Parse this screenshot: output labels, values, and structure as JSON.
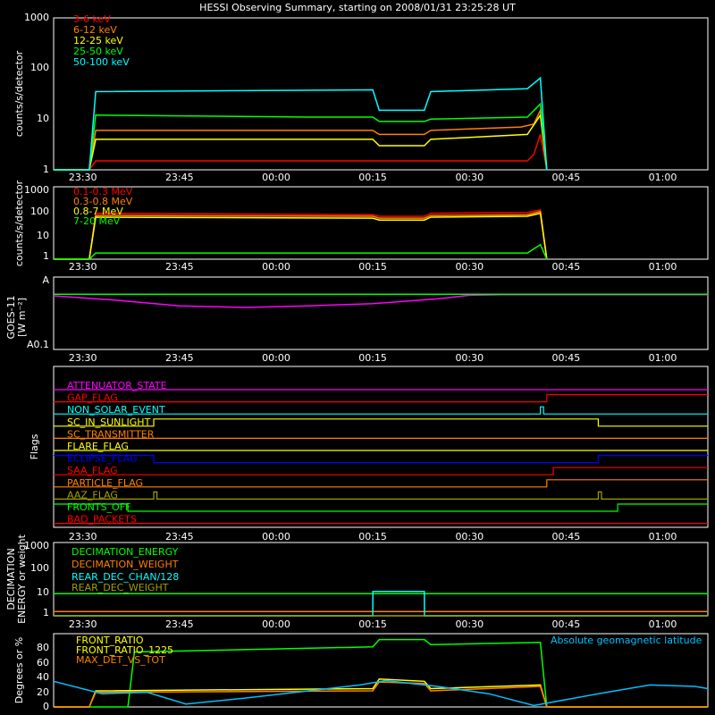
{
  "title": "HESSI Observing Summary, starting on 2008/01/31 23:25:28 UT",
  "time_axis": {
    "start": "23:25:28",
    "end": "01:07",
    "tick_labels": [
      "23:30",
      "23:45",
      "00:00",
      "00:15",
      "00:30",
      "00:45",
      "01:00"
    ]
  },
  "panels": {
    "lo_energy": {
      "ylabel": "counts/s/detector",
      "tick_labels": [
        "1",
        "10",
        "100",
        "1000"
      ]
    },
    "hi_energy": {
      "ylabel": "counts/s/detector",
      "tick_labels": [
        "1",
        "10",
        "100",
        "1000"
      ]
    },
    "goes": {
      "ylabel_line1": "GOES-11",
      "ylabel_line2": "[W m⁻²]",
      "tick_labels": [
        "A0.1",
        "A"
      ]
    },
    "flags": {
      "ylabel": "Flags"
    },
    "decimation": {
      "ylabel_line1": "DECIMATION",
      "ylabel_line2": "ENERGY or weight",
      "tick_labels": [
        "1",
        "10",
        "100",
        "1000"
      ]
    },
    "geo": {
      "ylabel": "Degrees or %",
      "tick_labels": [
        "0",
        "20",
        "40",
        "60",
        "80"
      ],
      "annotation": "Absolute geomagnetic latitude"
    }
  },
  "colors": {
    "red": "#ff0000",
    "orange": "#ff8000",
    "yellow": "#ffff00",
    "green": "#00ff00",
    "cyan": "#00ffff",
    "magenta": "#ff00ff",
    "blue": "#0000ff",
    "brown": "#c06000",
    "olive": "#a0a000",
    "axis": "#ffffff",
    "background": "#000000"
  },
  "chart_data": [
    {
      "type": "line",
      "title": "HESSI Observing Summary, starting on 2008/01/31 23:25:28 UT",
      "ylabel": "counts/s/detector",
      "yscale": "log",
      "ylim": [
        1,
        1000
      ],
      "xlim": [
        "23:25:28",
        "01:07"
      ],
      "series": [
        {
          "name": "3-6 keV",
          "color": "#ff0000",
          "points": [
            [
              "23:25:28",
              1
            ],
            [
              "23:31",
              1
            ],
            [
              "23:32",
              1.5
            ],
            [
              "00:05",
              1.5
            ],
            [
              "00:39",
              1.5
            ],
            [
              "00:40",
              2
            ],
            [
              "00:41",
              5
            ],
            [
              "00:42",
              1
            ]
          ]
        },
        {
          "name": "6-12 keV",
          "color": "#ff8000",
          "points": [
            [
              "23:25:28",
              1
            ],
            [
              "23:31",
              1
            ],
            [
              "23:32",
              6
            ],
            [
              "00:15",
              6
            ],
            [
              "00:16",
              5
            ],
            [
              "00:23",
              5
            ],
            [
              "00:24",
              6
            ],
            [
              "00:38",
              7
            ],
            [
              "00:40",
              8
            ],
            [
              "00:41",
              15
            ],
            [
              "00:42",
              1
            ]
          ]
        },
        {
          "name": "12-25 keV",
          "color": "#ffff00",
          "points": [
            [
              "23:25:28",
              1
            ],
            [
              "23:31",
              1
            ],
            [
              "23:32",
              4
            ],
            [
              "00:15",
              4
            ],
            [
              "00:16",
              3
            ],
            [
              "00:23",
              3
            ],
            [
              "00:24",
              4
            ],
            [
              "00:39",
              5
            ],
            [
              "00:41",
              12
            ],
            [
              "00:42",
              1
            ]
          ]
        },
        {
          "name": "25-50 keV",
          "color": "#00ff00",
          "points": [
            [
              "23:25:28",
              1
            ],
            [
              "23:31",
              1
            ],
            [
              "23:32",
              12
            ],
            [
              "00:05",
              11
            ],
            [
              "00:15",
              11
            ],
            [
              "00:16",
              9
            ],
            [
              "00:23",
              9
            ],
            [
              "00:24",
              10
            ],
            [
              "00:39",
              11
            ],
            [
              "00:41",
              20
            ],
            [
              "00:42",
              1
            ]
          ]
        },
        {
          "name": "50-100 keV",
          "color": "#00ffff",
          "points": [
            [
              "23:25:28",
              1
            ],
            [
              "23:31",
              1
            ],
            [
              "23:32",
              35
            ],
            [
              "00:15",
              38
            ],
            [
              "00:16",
              15
            ],
            [
              "00:23",
              15
            ],
            [
              "00:24",
              35
            ],
            [
              "00:39",
              40
            ],
            [
              "00:41",
              65
            ],
            [
              "00:42",
              1
            ]
          ]
        }
      ]
    },
    {
      "type": "line",
      "ylabel": "counts/s/detector",
      "yscale": "log",
      "ylim": [
        1,
        1000
      ],
      "series": [
        {
          "name": "0.1-0.3 MeV",
          "color": "#ff0000",
          "points": [
            [
              "23:25:28",
              1
            ],
            [
              "23:31",
              1
            ],
            [
              "23:32",
              80
            ],
            [
              "00:15",
              70
            ],
            [
              "00:16",
              60
            ],
            [
              "00:23",
              60
            ],
            [
              "00:24",
              80
            ],
            [
              "00:39",
              85
            ],
            [
              "00:41",
              110
            ],
            [
              "00:42",
              1
            ]
          ]
        },
        {
          "name": "0.3-0.8 MeV",
          "color": "#ff8000",
          "points": [
            [
              "23:25:28",
              1
            ],
            [
              "23:31",
              1
            ],
            [
              "23:32",
              65
            ],
            [
              "00:15",
              60
            ],
            [
              "00:16",
              50
            ],
            [
              "00:23",
              50
            ],
            [
              "00:24",
              65
            ],
            [
              "00:39",
              70
            ],
            [
              "00:41",
              95
            ],
            [
              "00:42",
              1
            ]
          ]
        },
        {
          "name": "0.8-7 MeV",
          "color": "#ffff00",
          "points": [
            [
              "23:25:28",
              1
            ],
            [
              "23:31",
              1
            ],
            [
              "23:32",
              55
            ],
            [
              "00:15",
              50
            ],
            [
              "00:16",
              42
            ],
            [
              "00:23",
              42
            ],
            [
              "00:24",
              55
            ],
            [
              "00:39",
              60
            ],
            [
              "00:41",
              80
            ],
            [
              "00:42",
              1
            ]
          ]
        },
        {
          "name": "7-20 MeV",
          "color": "#00ff00",
          "points": [
            [
              "23:25:28",
              1
            ],
            [
              "23:31",
              1
            ],
            [
              "23:32",
              1.8
            ],
            [
              "00:39",
              1.8
            ],
            [
              "00:41",
              4
            ],
            [
              "00:42",
              1
            ]
          ]
        }
      ]
    },
    {
      "type": "line",
      "ylabel": "GOES-11 [W m⁻²]",
      "yscale": "log",
      "ylim": [
        1e-09,
        1e-08
      ],
      "series": [
        {
          "color": "#ff00ff",
          "points": [
            [
              "23:25:28",
              5.5e-09
            ],
            [
              "23:35",
              4.8e-09
            ],
            [
              "23:45",
              4e-09
            ],
            [
              "23:55",
              3.8e-09
            ],
            [
              "00:05",
              4e-09
            ],
            [
              "00:15",
              4.3e-09
            ],
            [
              "00:25",
              5e-09
            ],
            [
              "00:30",
              5.6e-09
            ],
            [
              "00:35",
              5.7e-09
            ],
            [
              "01:07",
              5.7e-09
            ]
          ]
        },
        {
          "color": "#00ff00",
          "points": [
            [
              "23:25:28",
              5.8e-09
            ],
            [
              "01:07",
              5.8e-09
            ]
          ]
        }
      ]
    },
    {
      "type": "line",
      "ylabel": "Flags",
      "series": [
        {
          "name": "ATTENUATOR_STATE",
          "color": "#ff00ff",
          "transitions": [
            [
              "23:25:28",
              0
            ]
          ]
        },
        {
          "name": "GAP_FLAG",
          "color": "#ff0000",
          "transitions": [
            [
              "23:25:28",
              0
            ],
            [
              "00:42",
              1
            ]
          ]
        },
        {
          "name": "NON_SOLAR_EVENT",
          "color": "#00ffff",
          "transitions": [
            [
              "23:25:28",
              0
            ],
            [
              "00:41",
              1
            ],
            [
              "00:41:30",
              0
            ]
          ]
        },
        {
          "name": "SC_IN_SUNLIGHT",
          "color": "#ffff00",
          "transitions": [
            [
              "23:25:28",
              0
            ],
            [
              "23:41",
              1
            ],
            [
              "00:50",
              0
            ]
          ]
        },
        {
          "name": "SC_TRANSMITTER",
          "color": "#ff8000",
          "transitions": [
            [
              "23:25:28",
              0
            ]
          ]
        },
        {
          "name": "FLARE_FLAG",
          "color": "#ffff00",
          "transitions": [
            [
              "23:25:28",
              0
            ]
          ]
        },
        {
          "name": "ECLIPSE_FLAG",
          "color": "#0000ff",
          "transitions": [
            [
              "23:25:28",
              1
            ],
            [
              "23:41",
              0
            ],
            [
              "00:50",
              1
            ]
          ]
        },
        {
          "name": "SAA_FLAG",
          "color": "#ff0000",
          "transitions": [
            [
              "23:25:28",
              0
            ],
            [
              "00:43",
              1
            ]
          ]
        },
        {
          "name": "PARTICLE_FLAG",
          "color": "#ff8000",
          "transitions": [
            [
              "23:25:28",
              0
            ],
            [
              "00:42",
              1
            ]
          ]
        },
        {
          "name": "AAZ_FLAG",
          "color": "#a0a000",
          "transitions": [
            [
              "23:25:28",
              0
            ],
            [
              "23:41",
              1
            ],
            [
              "23:41:30",
              0
            ],
            [
              "00:50",
              1
            ],
            [
              "00:50:30",
              0
            ]
          ]
        },
        {
          "name": "FRONTS_OFF",
          "color": "#00ff00",
          "transitions": [
            [
              "23:25:28",
              1
            ],
            [
              "23:37",
              0
            ],
            [
              "00:53",
              1
            ]
          ]
        },
        {
          "name": "BAD_PACKETS",
          "color": "#ff0000",
          "transitions": [
            [
              "23:25:28",
              0
            ]
          ]
        }
      ]
    },
    {
      "type": "line",
      "ylabel": "DECIMATION ENERGY or weight",
      "yscale": "log",
      "ylim": [
        1,
        1000
      ],
      "series": [
        {
          "name": "DECIMATION_ENERGY",
          "color": "#00ff00",
          "points": [
            [
              "23:25:28",
              8
            ],
            [
              "01:07",
              8
            ]
          ]
        },
        {
          "name": "DECIMATION_WEIGHT",
          "color": "#ff8000",
          "points": [
            [
              "23:25:28",
              1.5
            ],
            [
              "01:07",
              1.5
            ]
          ]
        },
        {
          "name": "REAR_DEC_CHAN/128",
          "color": "#00ffff",
          "points": [
            [
              "23:25:28",
              1
            ],
            [
              "00:15",
              1
            ],
            [
              "00:15:01",
              10
            ],
            [
              "00:23",
              10
            ],
            [
              "00:23:01",
              1
            ],
            [
              "01:07",
              1
            ]
          ]
        },
        {
          "name": "REAR_DEC_WEIGHT",
          "color": "#a0a000",
          "points": [
            [
              "23:25:28",
              1
            ],
            [
              "01:07",
              1
            ]
          ]
        }
      ]
    },
    {
      "type": "line",
      "ylabel": "Degrees or %",
      "ylim": [
        0,
        100
      ],
      "annotations": [
        "Absolute geomagnetic latitude"
      ],
      "series": [
        {
          "name": "FRONT_RATIO",
          "color": "#00ff00",
          "points": [
            [
              "23:25:28",
              0
            ],
            [
              "23:37",
              0
            ],
            [
              "23:38",
              75
            ],
            [
              "00:15",
              82
            ],
            [
              "00:16",
              92
            ],
            [
              "00:23",
              92
            ],
            [
              "00:24",
              85
            ],
            [
              "00:41",
              88
            ],
            [
              "00:42",
              0
            ],
            [
              "01:07",
              0
            ]
          ]
        },
        {
          "name": "FRONT_RATIO_1225",
          "color": "#ffff00",
          "points": [
            [
              "23:25:28",
              0
            ],
            [
              "23:31",
              0
            ],
            [
              "23:32",
              22
            ],
            [
              "00:15",
              25
            ],
            [
              "00:16",
              38
            ],
            [
              "00:23",
              35
            ],
            [
              "00:24",
              25
            ],
            [
              "00:41",
              30
            ],
            [
              "00:42",
              0
            ],
            [
              "01:07",
              0
            ]
          ]
        },
        {
          "name": "MAX_DET_VS_TOT",
          "color": "#ff8000",
          "points": [
            [
              "23:25:28",
              0
            ],
            [
              "23:31",
              0
            ],
            [
              "23:32",
              20
            ],
            [
              "00:15",
              22
            ],
            [
              "00:16",
              34
            ],
            [
              "00:23",
              32
            ],
            [
              "00:24",
              22
            ],
            [
              "00:41",
              28
            ],
            [
              "00:42",
              0
            ],
            [
              "01:07",
              0
            ]
          ]
        },
        {
          "name": "Absolute geomagnetic latitude",
          "color": "#00c0ff",
          "points": [
            [
              "23:25:28",
              35
            ],
            [
              "23:33",
              18
            ],
            [
              "23:40",
              20
            ],
            [
              "23:46",
              4
            ],
            [
              "23:55",
              12
            ],
            [
              "00:05",
              22
            ],
            [
              "00:13",
              30
            ],
            [
              "00:17",
              36
            ],
            [
              "00:25",
              28
            ],
            [
              "00:33",
              18
            ],
            [
              "00:40",
              2
            ],
            [
              "00:50",
              18
            ],
            [
              "00:58",
              30
            ],
            [
              "01:05",
              28
            ],
            [
              "01:07",
              25
            ]
          ]
        }
      ]
    }
  ]
}
